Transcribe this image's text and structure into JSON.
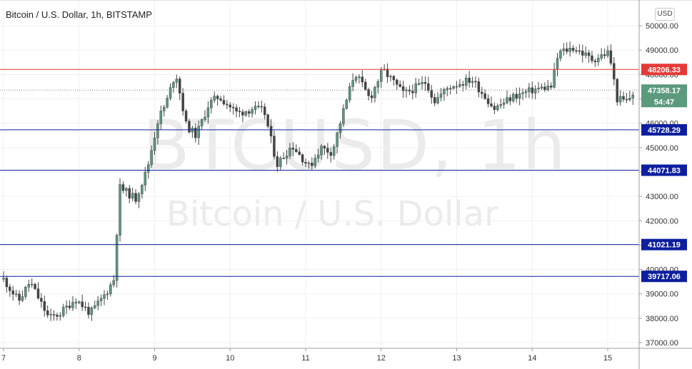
{
  "header": {
    "title": "Bitcoin / U.S. Dollar, 1h, BITSTAMP",
    "currency": "USD"
  },
  "watermark": {
    "symbol": "BTCUSD, 1h",
    "name": "Bitcoin / U.S. Dollar"
  },
  "chart_data": {
    "type": "candlestick",
    "x_ticks": [
      "7",
      "8",
      "9",
      "10",
      "11",
      "12",
      "13",
      "14",
      "15"
    ],
    "y_ticks": [
      37000,
      38000,
      39000,
      40000,
      41000,
      42000,
      43000,
      44000,
      45000,
      46000,
      47000,
      48000,
      49000,
      50000
    ],
    "ylim": [
      36750,
      50500
    ],
    "horizontal_levels": [
      {
        "value": 48206.33,
        "label": "48206.33",
        "color": "#e53935"
      },
      {
        "value": 45728.29,
        "label": "45728.29",
        "color": "#0d1f9e"
      },
      {
        "value": 44071.83,
        "label": "44071.83",
        "color": "#0d1f9e"
      },
      {
        "value": 41021.19,
        "label": "41021.19",
        "color": "#0d1f9e"
      },
      {
        "value": 39717.06,
        "label": "39717.06",
        "color": "#0d1f9e"
      }
    ],
    "last_price": {
      "value": 47358.17,
      "label": "47358.17",
      "countdown": "54:47",
      "color": "#5b9a7d"
    },
    "colors": {
      "up": "#5b9a7d",
      "down": "#444444"
    },
    "anchors": [
      {
        "d": 7.0,
        "p": 39600
      },
      {
        "d": 7.2,
        "p": 38700
      },
      {
        "d": 7.35,
        "p": 39500
      },
      {
        "d": 7.6,
        "p": 38000
      },
      {
        "d": 7.75,
        "p": 38200
      },
      {
        "d": 7.95,
        "p": 38800
      },
      {
        "d": 8.15,
        "p": 38200
      },
      {
        "d": 8.35,
        "p": 39000
      },
      {
        "d": 8.48,
        "p": 39700
      },
      {
        "d": 8.52,
        "p": 43400
      },
      {
        "d": 8.75,
        "p": 42900
      },
      {
        "d": 8.9,
        "p": 44100
      },
      {
        "d": 9.05,
        "p": 46200
      },
      {
        "d": 9.15,
        "p": 46800
      },
      {
        "d": 9.28,
        "p": 48100
      },
      {
        "d": 9.42,
        "p": 45900
      },
      {
        "d": 9.55,
        "p": 45500
      },
      {
        "d": 9.72,
        "p": 46800
      },
      {
        "d": 9.85,
        "p": 47100
      },
      {
        "d": 10.1,
        "p": 46400
      },
      {
        "d": 10.3,
        "p": 46600
      },
      {
        "d": 10.45,
        "p": 46500
      },
      {
        "d": 10.62,
        "p": 44300
      },
      {
        "d": 10.82,
        "p": 45100
      },
      {
        "d": 11.05,
        "p": 44200
      },
      {
        "d": 11.2,
        "p": 45000
      },
      {
        "d": 11.35,
        "p": 44800
      },
      {
        "d": 11.5,
        "p": 46500
      },
      {
        "d": 11.65,
        "p": 48100
      },
      {
        "d": 11.85,
        "p": 47000
      },
      {
        "d": 12.02,
        "p": 48200
      },
      {
        "d": 12.3,
        "p": 47200
      },
      {
        "d": 12.6,
        "p": 47700
      },
      {
        "d": 12.7,
        "p": 46900
      },
      {
        "d": 12.9,
        "p": 47500
      },
      {
        "d": 13.2,
        "p": 47800
      },
      {
        "d": 13.5,
        "p": 46600
      },
      {
        "d": 13.75,
        "p": 47100
      },
      {
        "d": 14.05,
        "p": 47400
      },
      {
        "d": 14.25,
        "p": 47500
      },
      {
        "d": 14.35,
        "p": 48900
      },
      {
        "d": 14.55,
        "p": 49100
      },
      {
        "d": 14.8,
        "p": 48600
      },
      {
        "d": 15.0,
        "p": 48900
      },
      {
        "d": 15.05,
        "p": 48400
      },
      {
        "d": 15.12,
        "p": 47000
      },
      {
        "d": 15.25,
        "p": 46900
      },
      {
        "d": 15.37,
        "p": 47358
      }
    ]
  }
}
